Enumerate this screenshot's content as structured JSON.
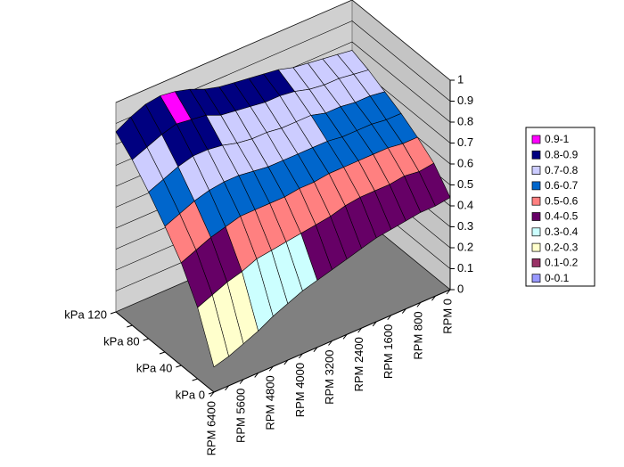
{
  "chart_data": {
    "type": "surface",
    "categories": [
      "RPM 6400",
      null,
      "RPM 5600",
      null,
      "RPM 4800",
      null,
      "RPM 4000",
      null,
      "RPM 3200",
      null,
      "RPM 2400",
      null,
      "RPM 1600",
      null,
      "RPM 800",
      null,
      "RPM 0"
    ],
    "depth_categories": [
      "kPa 0",
      null,
      "kPa 40",
      null,
      "kPa 80",
      null,
      "kPa 120"
    ],
    "values": [
      [
        0.12,
        0.14,
        0.17,
        0.2,
        0.24,
        0.27,
        0.3,
        0.32,
        0.34,
        0.36,
        0.38,
        0.4,
        0.41,
        0.42,
        0.43,
        0.43,
        0.44
      ],
      [
        0.34,
        0.37,
        0.4,
        0.42,
        0.45,
        0.46,
        0.47,
        0.48,
        0.49,
        0.5,
        0.52,
        0.53,
        0.53,
        0.53,
        0.54,
        0.53,
        0.54
      ],
      [
        0.49,
        0.52,
        0.55,
        0.57,
        0.59,
        0.59,
        0.59,
        0.59,
        0.6,
        0.6,
        0.61,
        0.61,
        0.61,
        0.61,
        0.61,
        0.6,
        0.6
      ],
      [
        0.6,
        0.63,
        0.66,
        0.68,
        0.69,
        0.69,
        0.68,
        0.67,
        0.67,
        0.67,
        0.67,
        0.67,
        0.66,
        0.66,
        0.66,
        0.65,
        0.65
      ],
      [
        0.7,
        0.73,
        0.76,
        0.78,
        0.78,
        0.77,
        0.75,
        0.74,
        0.74,
        0.73,
        0.73,
        0.73,
        0.71,
        0.71,
        0.7,
        0.7,
        0.69
      ],
      [
        0.79,
        0.82,
        0.85,
        0.87,
        0.86,
        0.85,
        0.82,
        0.81,
        0.8,
        0.79,
        0.79,
        0.78,
        0.76,
        0.75,
        0.75,
        0.74,
        0.73
      ],
      [
        0.86,
        0.9,
        0.93,
        0.94,
        0.93,
        0.91,
        0.88,
        0.86,
        0.85,
        0.84,
        0.83,
        0.82,
        0.8,
        0.79,
        0.78,
        0.77,
        0.76
      ]
    ],
    "zlim": [
      0,
      1
    ],
    "zticks": [
      0,
      0.1,
      0.2,
      0.3,
      0.4,
      0.5,
      0.6,
      0.7,
      0.8,
      0.9,
      1
    ],
    "grid": true,
    "legend": [
      {
        "label": "0.9-1",
        "color": "#ff00ff"
      },
      {
        "label": "0.8-0.9",
        "color": "#000080"
      },
      {
        "label": "0.7-0.8",
        "color": "#ccccff"
      },
      {
        "label": "0.6-0.7",
        "color": "#0066cc"
      },
      {
        "label": "0.5-0.6",
        "color": "#ff8080"
      },
      {
        "label": "0.4-0.5",
        "color": "#660066"
      },
      {
        "label": "0.3-0.4",
        "color": "#ccffff"
      },
      {
        "label": "0.2-0.3",
        "color": "#ffffcc"
      },
      {
        "label": "0.1-0.2",
        "color": "#993366"
      },
      {
        "label": "0-0.1",
        "color": "#9999ff"
      }
    ]
  }
}
